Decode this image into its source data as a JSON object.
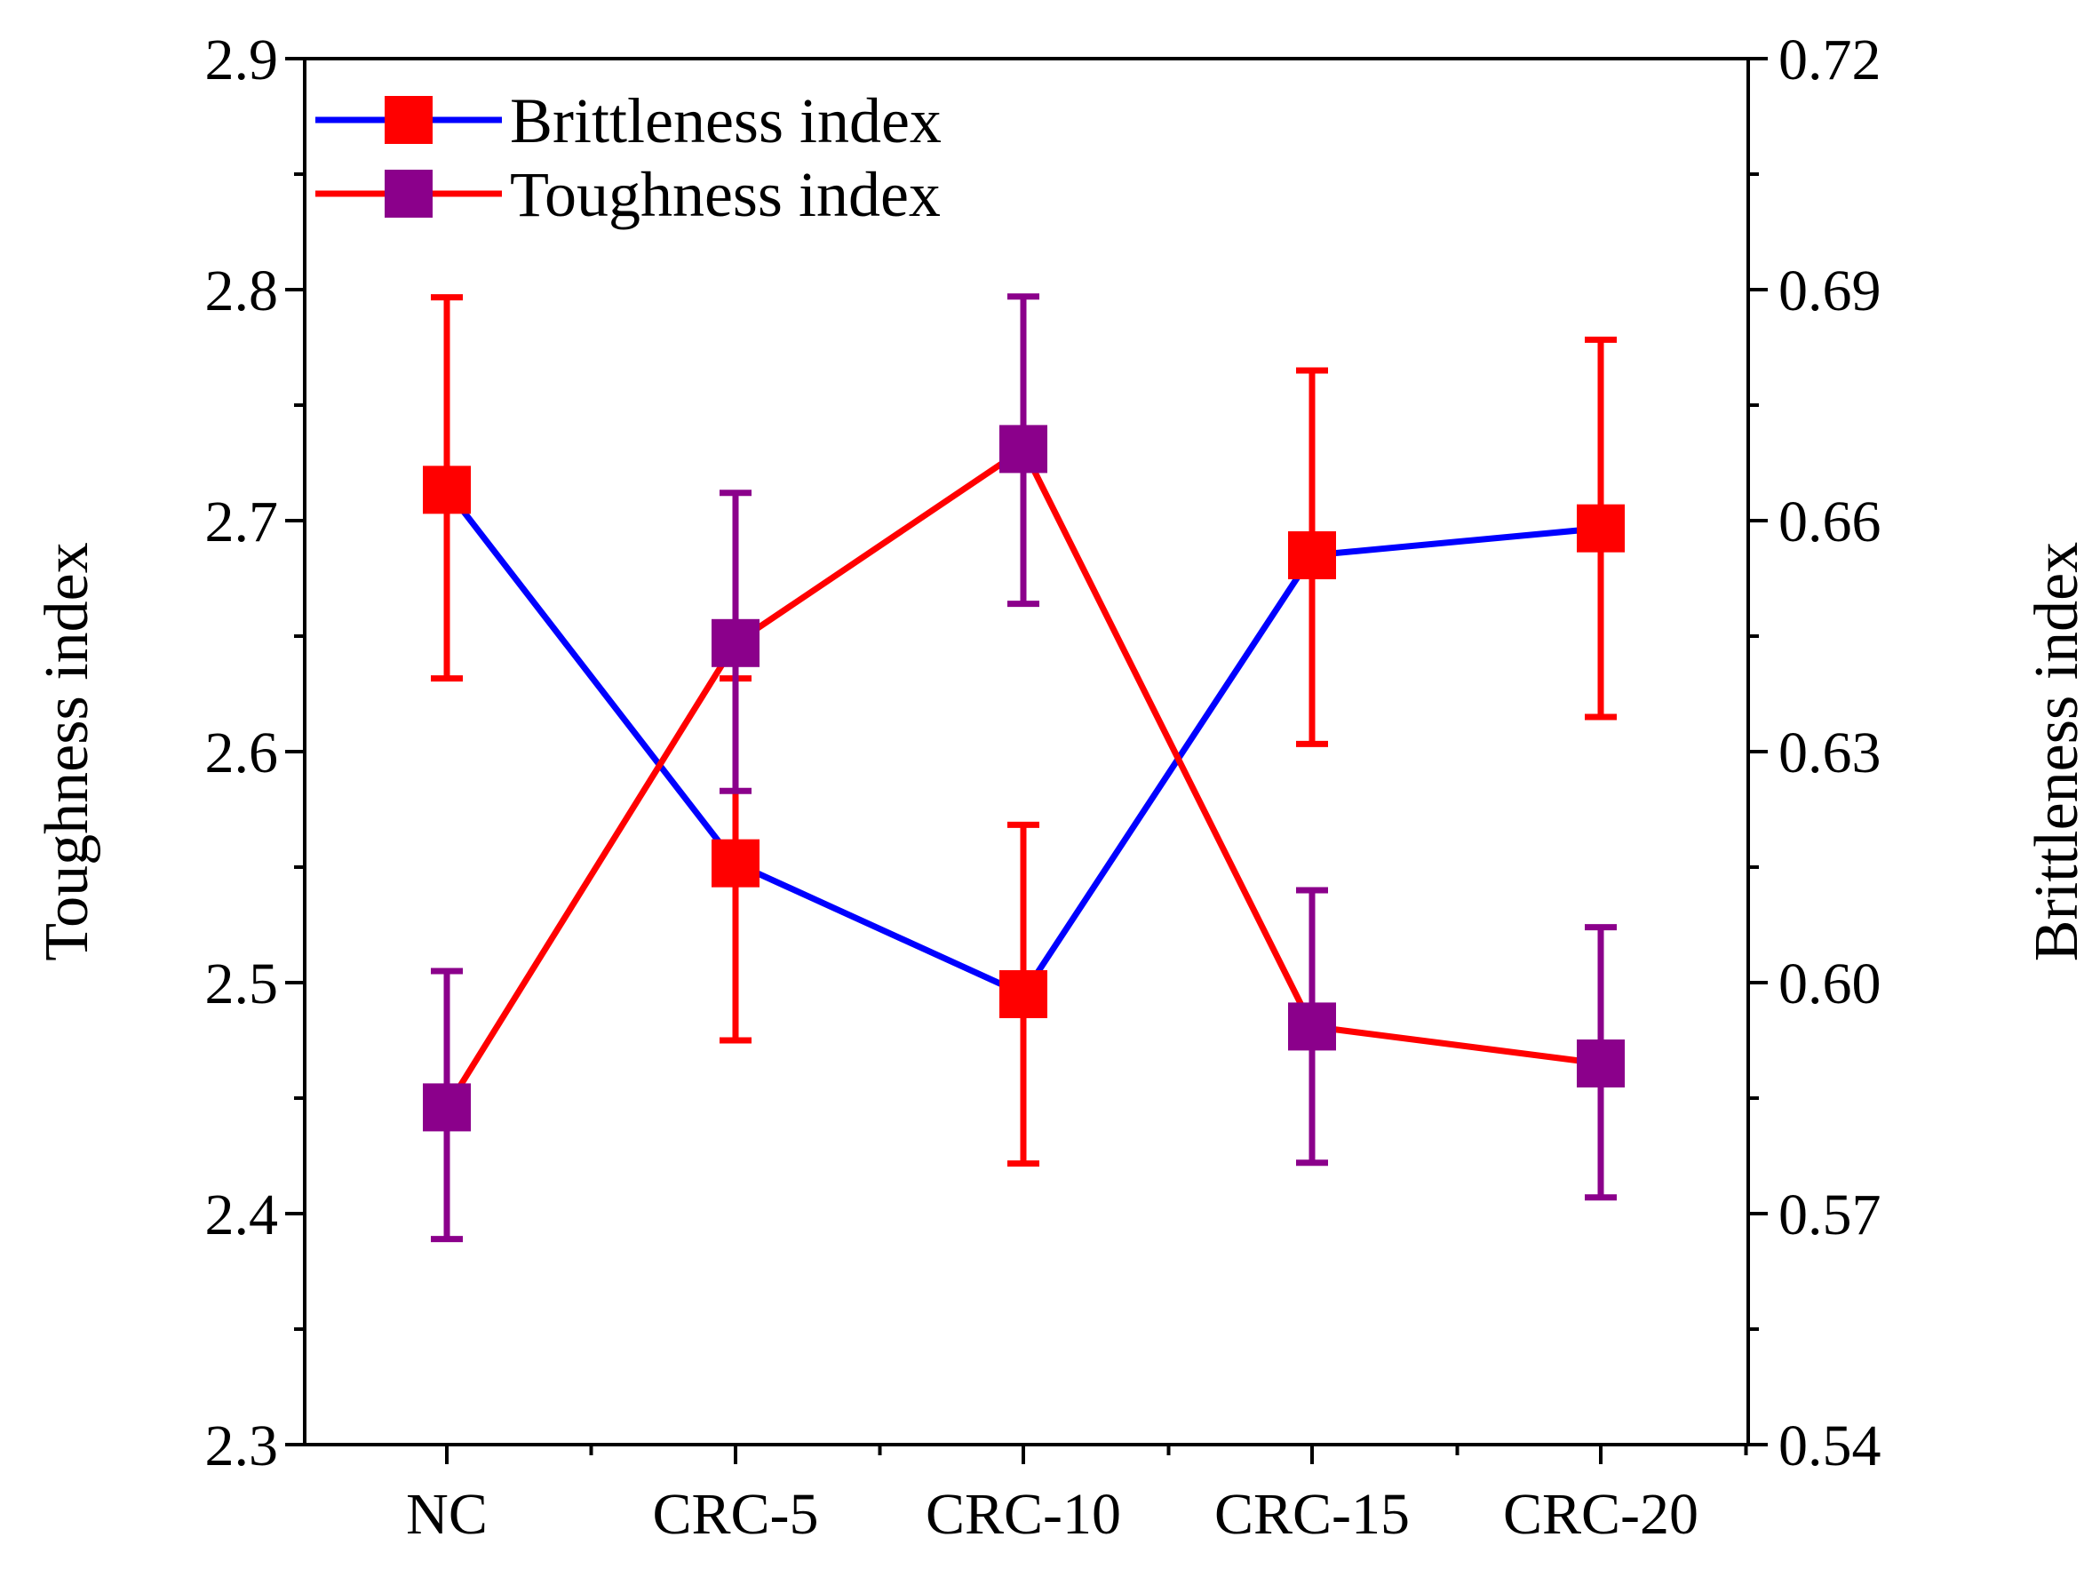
{
  "chart_data": {
    "type": "line",
    "categories": [
      "NC",
      "CRC-5",
      "CRC-10",
      "CRC-15",
      "CRC-20"
    ],
    "series": [
      {
        "name": "Brittleness index",
        "axis": "right",
        "line_color": "#0000FF",
        "marker_color": "#FF0000",
        "error_color": "#FF0000",
        "values": [
          0.664,
          0.6155,
          0.5985,
          0.6555,
          0.659
        ],
        "error_low": [
          0.6395,
          0.5925,
          0.5765,
          0.631,
          0.6345
        ],
        "error_high": [
          0.689,
          0.6395,
          0.6205,
          0.6795,
          0.6835
        ]
      },
      {
        "name": "Toughness index",
        "axis": "left",
        "line_color": "#FF0000",
        "marker_color": "#8B008B",
        "error_color": "#8B008B",
        "values": [
          2.446,
          2.647,
          2.731,
          2.481,
          2.465
        ],
        "error_low": [
          2.389,
          2.583,
          2.664,
          2.422,
          2.407
        ],
        "error_high": [
          2.505,
          2.712,
          2.797,
          2.54,
          2.524
        ]
      }
    ],
    "left_axis": {
      "label": "Toughness index",
      "lim": [
        2.3,
        2.9
      ],
      "ticks": [
        "2.3",
        "2.4",
        "2.5",
        "2.6",
        "2.7",
        "2.8",
        "2.9"
      ]
    },
    "right_axis": {
      "label": "Brittleness index",
      "lim": [
        0.54,
        0.72
      ],
      "ticks": [
        "0.54",
        "0.57",
        "0.60",
        "0.63",
        "0.66",
        "0.69",
        "0.72"
      ]
    },
    "legend": {
      "position": "top-left",
      "entries": [
        {
          "label": "Brittleness index",
          "line_color": "#0000FF",
          "marker_color": "#FF0000"
        },
        {
          "label": "Toughness index",
          "line_color": "#FF0000",
          "marker_color": "#8B008B"
        }
      ]
    },
    "grid": false
  }
}
